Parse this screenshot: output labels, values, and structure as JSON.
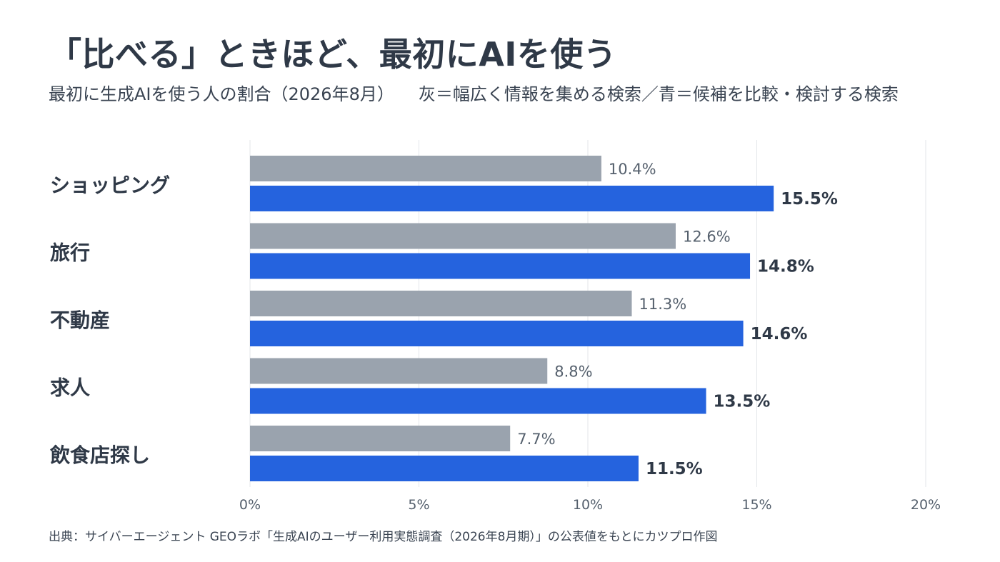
{
  "title": "「比べる」ときほど、最初にAIを使う",
  "subtitle": "最初に生成AIを使う人の割合（2026年8月）",
  "legend_note": "灰＝幅広く情報を集める検索／青＝候補を比較・検討する検索",
  "source": "出典：サイバーエージェント GEOラボ「生成AIのユーザー利用実態調査（2026年8月期）」の公表値をもとにカツプロ作図",
  "colors": {
    "gray": "#9aa3ae",
    "blue": "#2563de",
    "grid": "#e3e6ea",
    "category_text": "#2f3947",
    "gray_label": "#55606d",
    "blue_label": "#2f3947"
  },
  "chart_data": {
    "type": "bar",
    "orientation": "horizontal",
    "categories": [
      "ショッピング",
      "旅行",
      "不動産",
      "求人",
      "飲食店探し"
    ],
    "series": [
      {
        "values": [
          10.4,
          12.6,
          11.3,
          8.8,
          7.7
        ],
        "color": "gray"
      },
      {
        "values": [
          15.5,
          14.8,
          14.6,
          13.5,
          11.5
        ],
        "color": "blue"
      }
    ],
    "data_labels": [
      [
        "10.4%",
        "12.6%",
        "11.3%",
        "8.8%",
        "7.7%"
      ],
      [
        "15.5%",
        "14.8%",
        "14.6%",
        "13.5%",
        "11.5%"
      ]
    ],
    "xlim": [
      0,
      20
    ],
    "xticks": [
      0,
      5,
      10,
      15,
      20
    ],
    "xtick_labels": [
      "0%",
      "5%",
      "10%",
      "15%",
      "20%"
    ],
    "grid": "vertical",
    "xlabel": "",
    "ylabel": ""
  }
}
